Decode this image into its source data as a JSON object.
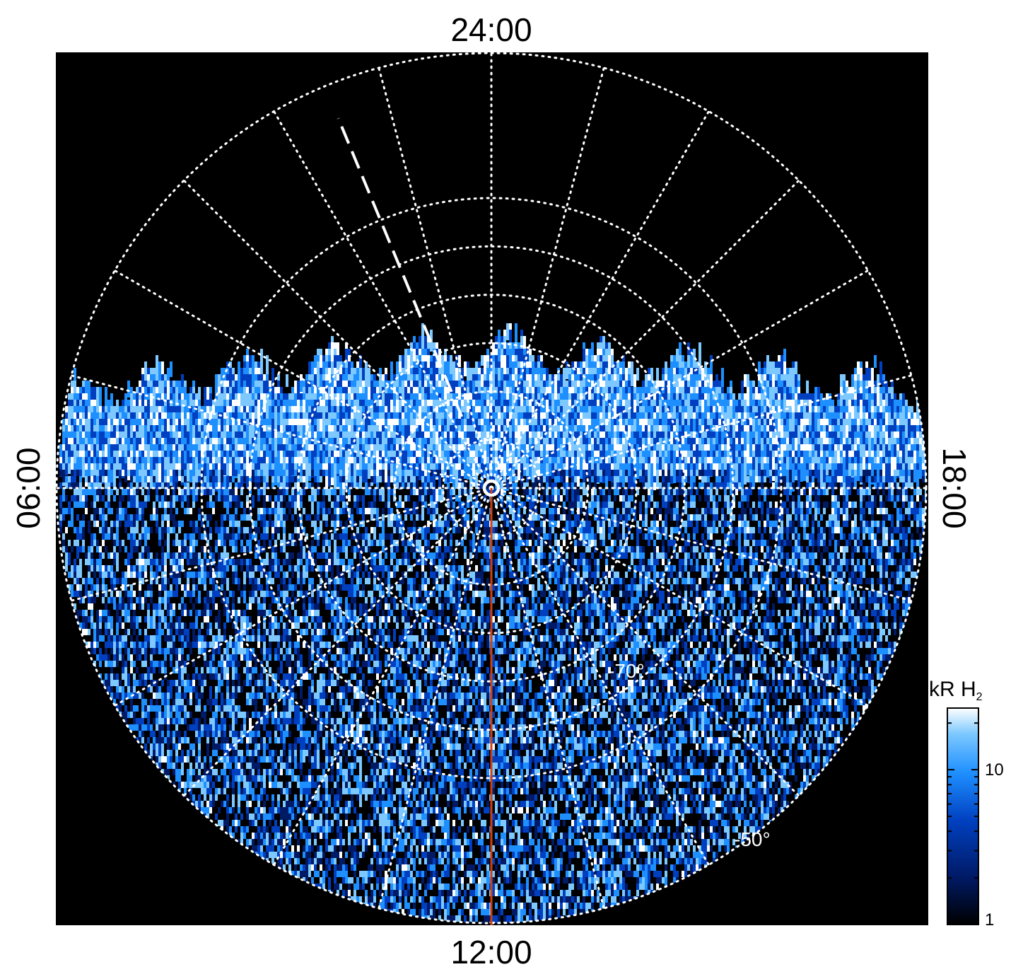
{
  "chart_data": {
    "type": "heatmap",
    "projection": "polar",
    "hemisphere": "south",
    "local_time_labels": {
      "top": "24:00",
      "bottom": "12:00",
      "left": "06:00",
      "right": "18:00"
    },
    "latitude_circles_deg": [
      -80,
      -70,
      -60,
      -50,
      -40,
      -30
    ],
    "latitude_labels": [
      "-70°",
      "-50°"
    ],
    "meridian_step_hours": 1,
    "colorbar": {
      "title": "kR H",
      "title_subscript": "2",
      "scale": "log",
      "range": [
        1,
        25
      ],
      "tick_labels": [
        "10",
        "1"
      ],
      "tick_values": [
        10,
        1
      ]
    },
    "colormap": [
      "#000000",
      "#001a66",
      "#0040c0",
      "#1e8fff",
      "#7cc8ff",
      "#ffffff"
    ],
    "annotations": {
      "noon_meridian_line_color": "#d04010",
      "dashed_meridian_local_time": "01:30"
    }
  }
}
